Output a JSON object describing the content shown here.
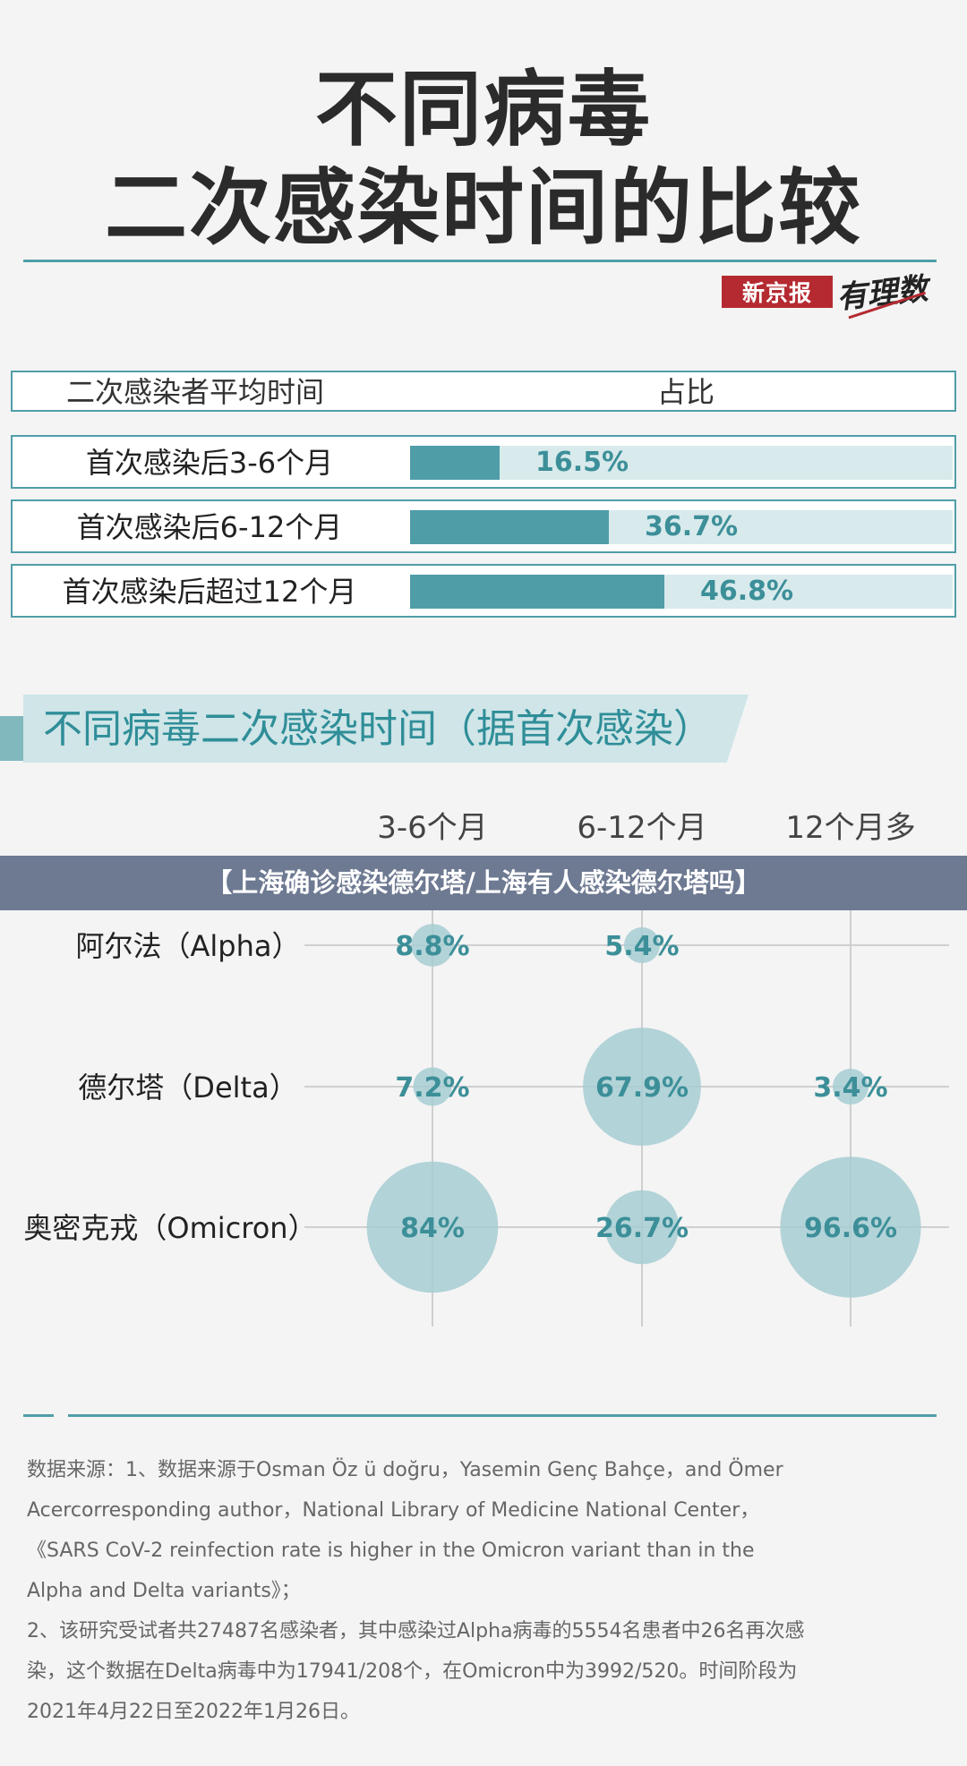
{
  "title_line1": "不同病毒",
  "title_line2": "二次感染时间的比较",
  "brand": {
    "name": "新京报",
    "column": "有理数"
  },
  "table": {
    "header_left": "二次感染者平均时间",
    "header_right": "占比",
    "rows": [
      {
        "label": "首次感染后3-6个月",
        "value": 16.5,
        "display": "16.5%"
      },
      {
        "label": "首次感染后6-12个月",
        "value": 36.7,
        "display": "36.7%"
      },
      {
        "label": "首次感染后超过12个月",
        "value": 46.8,
        "display": "46.8%"
      }
    ]
  },
  "section_title": "不同病毒二次感染时间（据首次感染）",
  "overlay_text": "【上海确诊感染德尔塔/上海有人感染德尔塔吗】",
  "chart_data": [
    {
      "type": "bar",
      "categories": [
        "首次感染后3-6个月",
        "首次感染后6-12个月",
        "首次感染后超过12个月"
      ],
      "values": [
        16.5,
        36.7,
        46.8
      ],
      "title": "",
      "xlabel": "二次感染者平均时间",
      "ylabel": "占比",
      "orientation": "horizontal",
      "unit": "%"
    },
    {
      "type": "scatter",
      "subtype": "bubble",
      "title": "不同病毒二次感染时间（据首次感染）",
      "x_categories": [
        "3-6个月",
        "6-12个月",
        "12个月多"
      ],
      "y_categories": [
        "阿尔法（Alpha）",
        "德尔塔（Delta）",
        "奥密克戎（Omicron）"
      ],
      "points": [
        {
          "row": 0,
          "col": 0,
          "value": 8.8,
          "label": "8.8%"
        },
        {
          "row": 0,
          "col": 1,
          "value": 5.4,
          "label": "5.4%"
        },
        {
          "row": 1,
          "col": 0,
          "value": 7.2,
          "label": "7.2%"
        },
        {
          "row": 1,
          "col": 1,
          "value": 67.9,
          "label": "67.9%"
        },
        {
          "row": 1,
          "col": 2,
          "value": 3.4,
          "label": "3.4%"
        },
        {
          "row": 2,
          "col": 0,
          "value": 84,
          "label": "84%"
        },
        {
          "row": 2,
          "col": 1,
          "value": 26.7,
          "label": "26.7%"
        },
        {
          "row": 2,
          "col": 2,
          "value": 96.6,
          "label": "96.6%"
        }
      ],
      "grid": true,
      "colors": {
        "bubble": "#a6ccd2",
        "label": "#3c8f98"
      }
    }
  ],
  "source": {
    "line1": "数据来源：1、数据来源于Osman Öz ü doğru，Yasemin Genç Bahçe，and Ömer",
    "line2": "Acercorresponding author，National Library of Medicine National Center，",
    "line3": "《SARS CoV-2 reinfection rate is higher in the Omicron variant than in the",
    "line4": "Alpha and Delta variants》；",
    "line5": "2、该研究受试者共27487名感染者，其中感染过Alpha病毒的5554名患者中26名再次感",
    "line6": "染，这个数据在Delta病毒中为17941/208个，在Omicron中为3992/520。时间阶段为",
    "line7": "2021年4月22日至2022年1月26日。"
  }
}
